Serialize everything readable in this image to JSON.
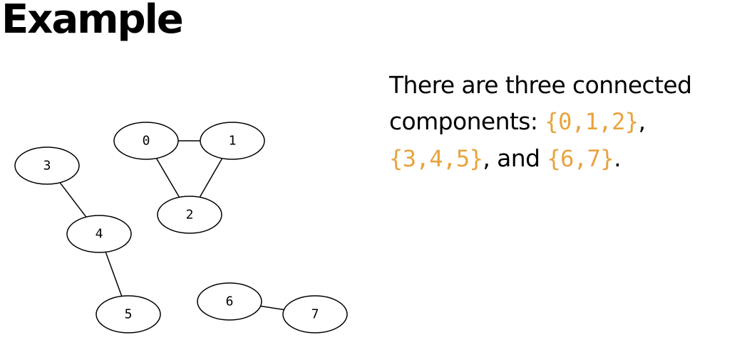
{
  "title": "Example",
  "description": {
    "line1": "There are three connected",
    "line2_prefix": "components: ",
    "set_a": "{0,1,2}",
    "line2_suffix": ",",
    "set_b": "{3,4,5}",
    "join": ", and ",
    "set_c": "{6,7}",
    "end": "."
  },
  "colors": {
    "text": "#000000",
    "set_highlight": "#e8a33d",
    "node_fill": "#ffffff",
    "node_stroke": "#000000"
  },
  "graph": {
    "nodes": [
      {
        "id": "0",
        "label": "0"
      },
      {
        "id": "1",
        "label": "1"
      },
      {
        "id": "2",
        "label": "2"
      },
      {
        "id": "3",
        "label": "3"
      },
      {
        "id": "4",
        "label": "4"
      },
      {
        "id": "5",
        "label": "5"
      },
      {
        "id": "6",
        "label": "6"
      },
      {
        "id": "7",
        "label": "7"
      }
    ],
    "edges": [
      {
        "from": "0",
        "to": "1"
      },
      {
        "from": "0",
        "to": "2"
      },
      {
        "from": "1",
        "to": "2"
      },
      {
        "from": "3",
        "to": "4"
      },
      {
        "from": "4",
        "to": "5"
      },
      {
        "from": "6",
        "to": "7"
      }
    ]
  }
}
